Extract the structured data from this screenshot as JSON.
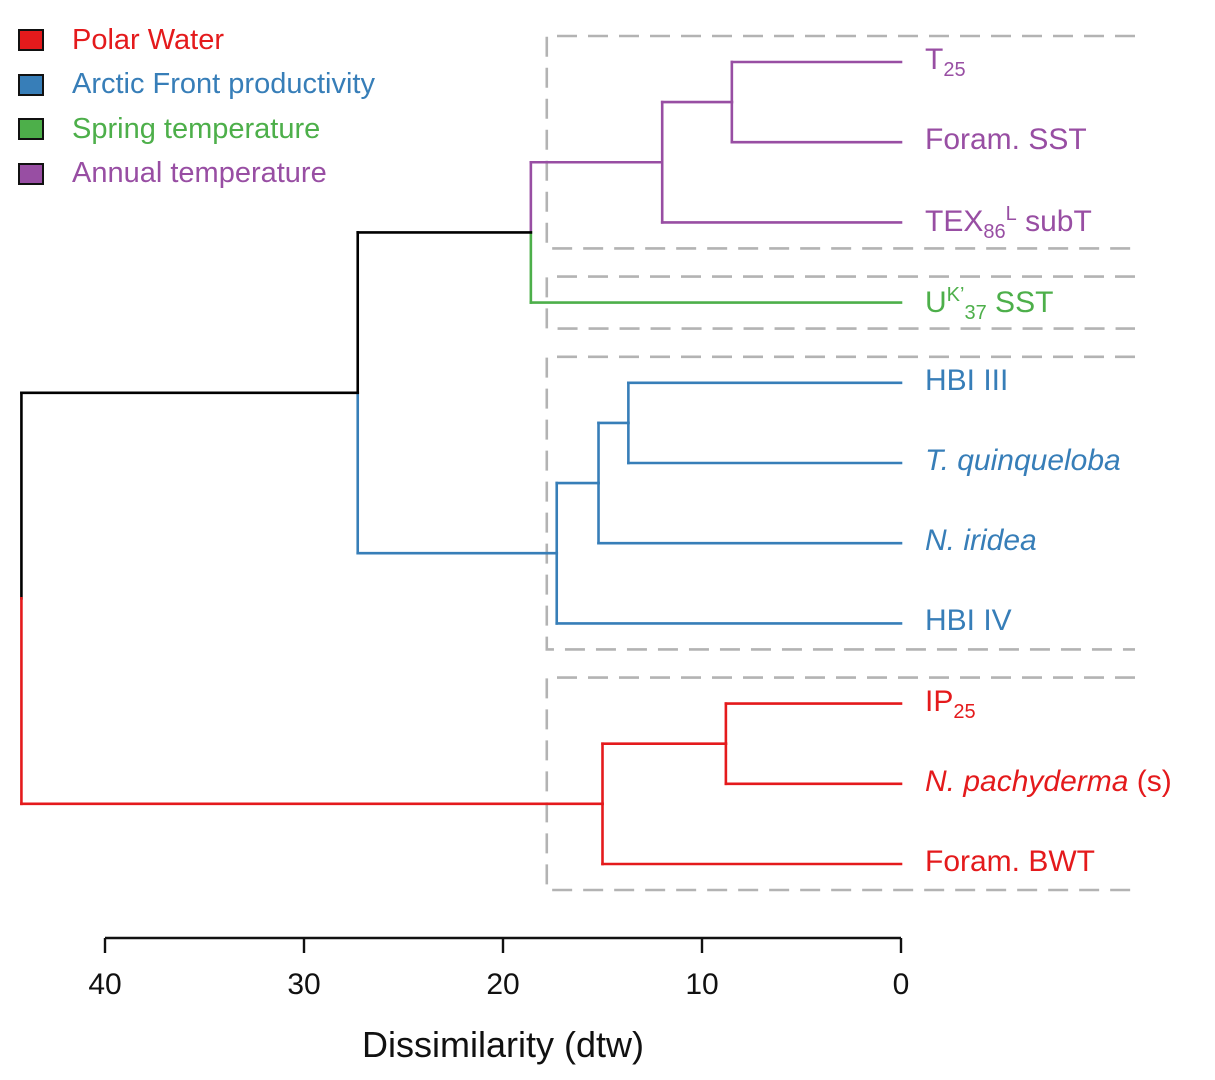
{
  "chart_data": {
    "type": "dendrogram",
    "title": "",
    "xlabel": "Dissimilarity (dtw)",
    "ylabel": "",
    "xlim": [
      40,
      0
    ],
    "x_ticks": [
      40,
      30,
      20,
      10,
      0
    ],
    "legend": {
      "placement": "top-left",
      "entries": [
        {
          "label": "Polar Water",
          "color": "#e41a1c"
        },
        {
          "label": "Arctic Front productivity",
          "color": "#377eb8"
        },
        {
          "label": "Spring temperature",
          "color": "#4daf4a"
        },
        {
          "label": "Annual temperature",
          "color": "#984ea3"
        }
      ]
    },
    "leaves": [
      {
        "id": "T25",
        "parts": [
          {
            "t": "T"
          },
          {
            "t": "25",
            "sub": true
          }
        ],
        "cluster": "annual"
      },
      {
        "id": "ForamSST",
        "parts": [
          {
            "t": "Foram. SST"
          }
        ],
        "cluster": "annual"
      },
      {
        "id": "TEX86L",
        "parts": [
          {
            "t": "TEX"
          },
          {
            "t": "86",
            "sub": true
          },
          {
            "t": "L",
            "sup": true
          },
          {
            "t": " subT"
          }
        ],
        "cluster": "annual"
      },
      {
        "id": "UK37",
        "parts": [
          {
            "t": "U"
          },
          {
            "t": "K’",
            "sup": true
          },
          {
            "t": "37",
            "sub": true
          },
          {
            "t": " SST"
          }
        ],
        "cluster": "spring"
      },
      {
        "id": "HBIIII",
        "parts": [
          {
            "t": "HBI III"
          }
        ],
        "cluster": "arctic"
      },
      {
        "id": "Tquin",
        "parts": [
          {
            "t": "T. quinqueloba",
            "it": true
          }
        ],
        "cluster": "arctic"
      },
      {
        "id": "Niridea",
        "parts": [
          {
            "t": "N. iridea",
            "it": true
          }
        ],
        "cluster": "arctic"
      },
      {
        "id": "HBIIV",
        "parts": [
          {
            "t": "HBI IV"
          }
        ],
        "cluster": "arctic"
      },
      {
        "id": "IP25",
        "parts": [
          {
            "t": "IP"
          },
          {
            "t": "25",
            "sub": true
          }
        ],
        "cluster": "polar"
      },
      {
        "id": "Npachy",
        "parts": [
          {
            "t": "N. pachyderma",
            "it": true
          },
          {
            "t": " (s)"
          }
        ],
        "cluster": "polar"
      },
      {
        "id": "ForamBWT",
        "parts": [
          {
            "t": "Foram. BWT"
          }
        ],
        "cluster": "polar"
      }
    ],
    "clusters": {
      "annual": "#984ea3",
      "spring": "#4daf4a",
      "arctic": "#377eb8",
      "polar": "#e41a1c",
      "root": "#000000"
    },
    "merges": [
      {
        "id": "m1",
        "children": [
          "T25",
          "ForamSST"
        ],
        "height": 8.5,
        "color": "annual"
      },
      {
        "id": "m2",
        "children": [
          "m1",
          "TEX86L"
        ],
        "height": 12.0,
        "color": "annual"
      },
      {
        "id": "m3",
        "children": [
          "m2",
          "UK37"
        ],
        "height": 18.6,
        "color": "split:annual|spring"
      },
      {
        "id": "m4",
        "children": [
          "HBIIII",
          "Tquin"
        ],
        "height": 13.7,
        "color": "arctic"
      },
      {
        "id": "m5",
        "children": [
          "m4",
          "Niridea"
        ],
        "height": 15.2,
        "color": "arctic"
      },
      {
        "id": "m6",
        "children": [
          "m5",
          "HBIIV"
        ],
        "height": 17.3,
        "color": "arctic"
      },
      {
        "id": "m7",
        "children": [
          "m3",
          "m6"
        ],
        "height": 27.3,
        "color": "split:root|arctic"
      },
      {
        "id": "m8",
        "children": [
          "IP25",
          "Npachy"
        ],
        "height": 8.8,
        "color": "polar"
      },
      {
        "id": "m9",
        "children": [
          "m8",
          "ForamBWT"
        ],
        "height": 15.0,
        "color": "polar"
      },
      {
        "id": "m10",
        "children": [
          "m7",
          "m9"
        ],
        "height": 44.2,
        "color": "split:root|polar"
      }
    ],
    "cut_boxes": [
      {
        "leaves": [
          "T25",
          "ForamSST",
          "TEX86L"
        ],
        "cut_height": 17.8
      },
      {
        "leaves": [
          "UK37"
        ],
        "cut_height": 17.8
      },
      {
        "leaves": [
          "HBIIII",
          "Tquin",
          "Niridea",
          "HBIIV"
        ],
        "cut_height": 17.8
      },
      {
        "leaves": [
          "IP25",
          "Npachy",
          "ForamBWT"
        ],
        "cut_height": 17.8
      }
    ],
    "cut_box_color": "#b3b3b3"
  }
}
